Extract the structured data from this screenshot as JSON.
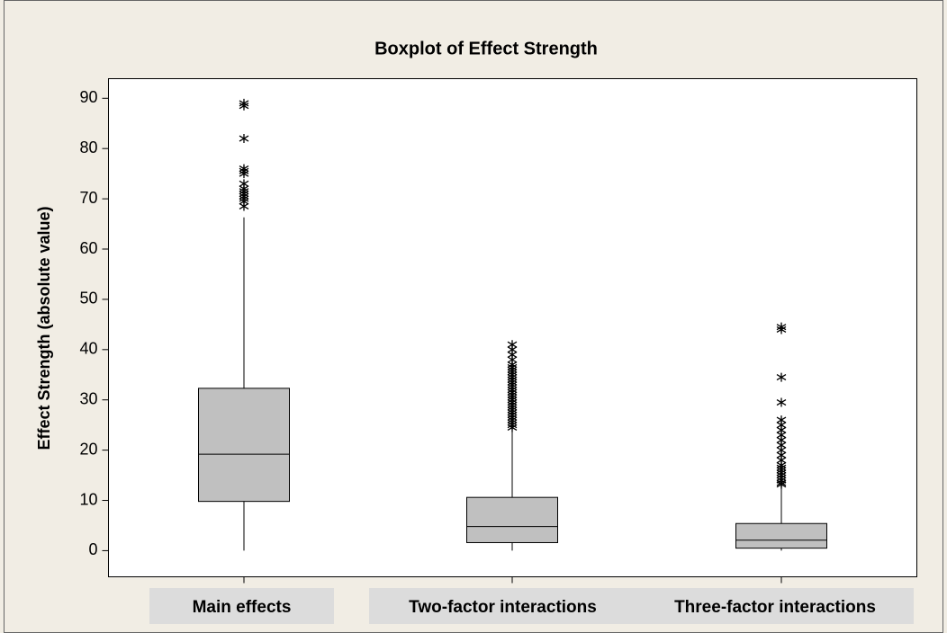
{
  "chart_data": {
    "type": "box",
    "title": "Boxplot of Effect Strength",
    "y_label": "Effect Strength (absolute value)",
    "categories": [
      "Main effects",
      "Two-factor interactions",
      "Three-factor interactions"
    ],
    "color": "#c0c0c0",
    "boxes": [
      {
        "whisker_low": 0,
        "q1": 9.8,
        "median": 19.2,
        "q3": 32.3,
        "whisker_high": 66.3,
        "outliers": [
          68.5,
          69.5,
          70,
          70.5,
          71,
          71.5,
          72,
          73,
          75,
          75.5,
          76,
          82,
          88.5,
          89
        ]
      },
      {
        "whisker_low": 0,
        "q1": 1.6,
        "median": 4.8,
        "q3": 10.6,
        "whisker_high": 24.3,
        "outliers": [
          24.5,
          25,
          25.5,
          26,
          26.5,
          27,
          27.5,
          28,
          28.5,
          29,
          29.5,
          30,
          30.5,
          31,
          31.5,
          32,
          32.5,
          33,
          33.5,
          34,
          34.5,
          35,
          35.5,
          36,
          36.5,
          37,
          38,
          39,
          40,
          41
        ]
      },
      {
        "whisker_low": 0,
        "q1": 0.5,
        "median": 2.1,
        "q3": 5.4,
        "whisker_high": 13,
        "outliers": [
          13.2,
          13.5,
          14,
          14.5,
          15,
          15.5,
          16,
          16.5,
          17,
          18,
          19,
          20,
          21,
          22,
          23,
          24,
          25,
          26,
          29.5,
          34.5,
          44,
          44.5
        ]
      }
    ],
    "ylim": [
      -5.2,
      93.9
    ],
    "yticks": [
      0,
      10,
      20,
      30,
      40,
      50,
      60,
      70,
      80,
      90
    ]
  }
}
